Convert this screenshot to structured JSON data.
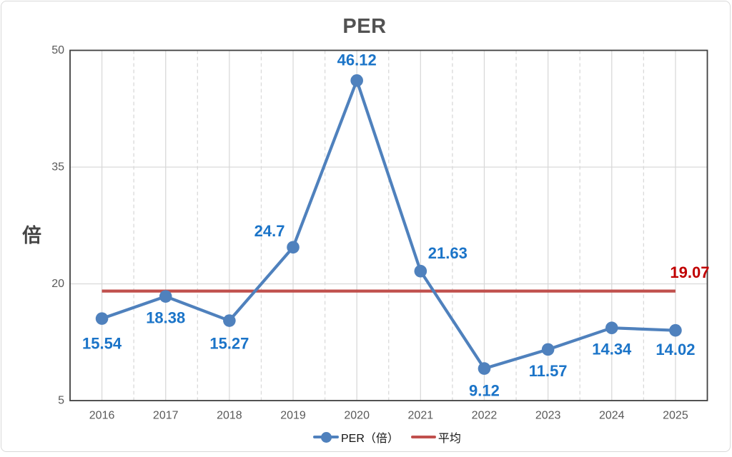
{
  "chart_data": {
    "type": "line",
    "title": "PER",
    "y_axis_title": "倍",
    "categories": [
      "2016",
      "2017",
      "2018",
      "2019",
      "2020",
      "2021",
      "2022",
      "2023",
      "2024",
      "2025"
    ],
    "series": [
      {
        "name": "PER（倍）",
        "values": [
          15.54,
          18.38,
          15.27,
          24.7,
          46.12,
          21.63,
          9.12,
          11.57,
          14.34,
          14.02
        ],
        "labels": [
          "15.54",
          "18.38",
          "15.27",
          "24.7",
          "46.12",
          "21.63",
          "9.12",
          "11.57",
          "14.34",
          "14.02"
        ],
        "color": "#4f81bd",
        "label_color": "#1b74c8",
        "label_offsets": [
          [
            0,
            35
          ],
          [
            0,
            30
          ],
          [
            0,
            32
          ],
          [
            -33,
            -23
          ],
          [
            0,
            -29
          ],
          [
            38,
            -25
          ],
          [
            0,
            31
          ],
          [
            0,
            30
          ],
          [
            0,
            30
          ],
          [
            0,
            27
          ]
        ]
      }
    ],
    "average": {
      "name": "平均",
      "value": 19.07,
      "label": "19.07",
      "color": "#c0504d",
      "label_color": "#c00000",
      "label_offset": [
        20,
        -26
      ]
    },
    "ylim": [
      5,
      50
    ],
    "y_ticks": [
      5,
      20,
      35,
      50
    ],
    "grid": {
      "color": "#d9d9d9",
      "horizontal": "solid lines at inner y ticks",
      "vertical_solid": "at category centers",
      "vertical_dashed": "at category boundaries"
    },
    "axis_color": "#404040",
    "tick_label_color": "#595959",
    "legend_position": "bottom-center"
  }
}
